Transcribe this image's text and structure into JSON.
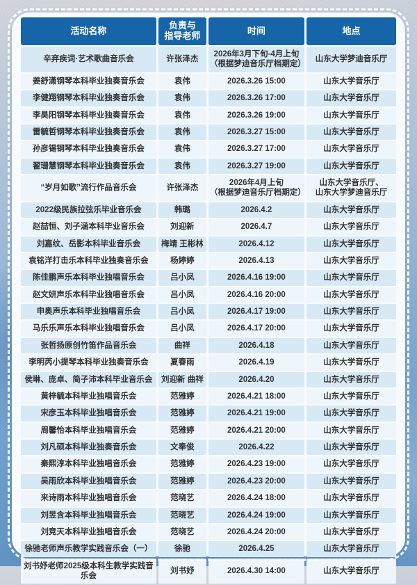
{
  "colors": {
    "header_bg": "#1565a8",
    "header_text": "#ffffff",
    "row_blue": "#d8e9f6",
    "row_white": "#eff6fb",
    "body_text": "#333333",
    "card_bg": "#f8fbfd",
    "page_bg_top": "#d2d5db",
    "page_bg_bottom": "#578dc0"
  },
  "table": {
    "columns": [
      {
        "label": "活动名称"
      },
      {
        "label": "负责与\n指导老师"
      },
      {
        "label": "时间"
      },
      {
        "label": "地点"
      }
    ],
    "rows": [
      {
        "name": "辛弃疾词·艺术歌曲音乐会",
        "teacher": "许张泽杰",
        "time": "2026年3月下旬-4月上旬\n（根据梦迪音乐厅档期定）",
        "location": "山东大学梦迪音乐厅"
      },
      {
        "name": "姜舒潇钢琴本科毕业独奏音乐会",
        "teacher": "袁伟",
        "time": "2026.3.26 15:00",
        "location": "山东大学音乐厅"
      },
      {
        "name": "李健翔钢琴本科毕业独奏音乐会",
        "teacher": "袁伟",
        "time": "2026.3.26 17:00",
        "location": "山东大学音乐厅"
      },
      {
        "name": "李昊阳钢琴本科毕业独奏音乐会",
        "teacher": "袁伟",
        "time": "2026.3.26 19:00",
        "location": "山东大学音乐厅"
      },
      {
        "name": "雷毓哲钢琴本科毕业独奏音乐会",
        "teacher": "袁伟",
        "time": "2026.3.27 15:00",
        "location": "山东大学音乐厅"
      },
      {
        "name": "孙彦锡钢琴本科毕业独奏音乐会",
        "teacher": "袁伟",
        "time": "2026.3.27 17:00",
        "location": "山东大学音乐厅"
      },
      {
        "name": "翟珊慧钢琴本科毕业独奏音乐会",
        "teacher": "袁伟",
        "time": "2026.3.27 19:00",
        "location": "山东大学音乐厅"
      },
      {
        "name": "“岁月如歌”流行作品音乐会",
        "teacher": "许张泽杰",
        "time": "2026年4月上旬\n（根据梦迪音乐厅档期定）",
        "location": "山东大学音乐厅、\n山东大学梦迪音乐厅"
      },
      {
        "name": "2022级民族拉弦乐毕业音乐会",
        "teacher": "韩璐",
        "time": "2026.4.2",
        "location": "山东大学音乐厅"
      },
      {
        "name": "赵喆恒、刘子涵本科毕业音乐会",
        "teacher": "刘迎新",
        "time": "2026.4.7",
        "location": "山东大学音乐厅"
      },
      {
        "name": "刘嘉纹、岳影本科毕业音乐会",
        "teacher": "梅靖 王彬林",
        "time": "2026.4.12",
        "location": "山东大学音乐厅"
      },
      {
        "name": "袁铭洋打击乐本科毕业独奏音乐会",
        "teacher": "杨婷婷",
        "time": "2026.4.13",
        "location": "山东大学音乐厅"
      },
      {
        "name": "陈佳鹏声乐本科毕业独唱音乐会",
        "teacher": "吕小凤",
        "time": "2026.4.16 19:00",
        "location": "山东大学音乐厅"
      },
      {
        "name": "赵文妍声乐本科毕业独唱音乐会",
        "teacher": "吕小凤",
        "time": "2026.4.16 20:00",
        "location": "山东大学音乐厅"
      },
      {
        "name": "申奥声乐本科毕业独唱音乐会",
        "teacher": "吕小凤",
        "time": "2026.4.17 19:00",
        "location": "山东大学音乐厅"
      },
      {
        "name": "马乐乐声乐本科毕业独唱音乐会",
        "teacher": "吕小凤",
        "time": "2026.4.17 20:00",
        "location": "山东大学音乐厅"
      },
      {
        "name": "张哲扬原创竹笛作品音乐会",
        "teacher": "曲祥",
        "time": "2026.4.18",
        "location": "山东大学音乐厅"
      },
      {
        "name": "李明芮小提琴本科毕业独奏音乐会",
        "teacher": "夏春雨",
        "time": "2026.4.19",
        "location": "山东大学音乐厅"
      },
      {
        "name": "侯琳、庞卓、简子沛本科毕业音乐会",
        "teacher": "刘迎新 曲祥",
        "time": "2026.4.20",
        "location": "山东大学音乐厅"
      },
      {
        "name": "黄梓毓本科毕业独唱音乐会",
        "teacher": "范雅婷",
        "time": "2026.4.21 18:00",
        "location": "山东大学音乐厅"
      },
      {
        "name": "宋彦玉本科毕业独唱音乐会",
        "teacher": "范雅婷",
        "time": "2026.4.21 19:00",
        "location": "山东大学音乐厅"
      },
      {
        "name": "周馨怡本科毕业独唱音乐会",
        "teacher": "范雅婷",
        "time": "2026.4.21 20:00",
        "location": "山东大学音乐厅"
      },
      {
        "name": "刘凡硕本科毕业独奏音乐会",
        "teacher": "文奉俊",
        "time": "2026.4.22",
        "location": "山东大学音乐厅"
      },
      {
        "name": "秦熙淳本科毕业独唱音乐会",
        "teacher": "范雅婷",
        "time": "2026.4.23 19:00",
        "location": "山东大学音乐厅"
      },
      {
        "name": "吴雨欣本科毕业独唱音乐会",
        "teacher": "范雅婷",
        "time": "2026.4.23 20:00",
        "location": "山东大学音乐厅"
      },
      {
        "name": "来诗雨本科毕业独唱音乐会",
        "teacher": "范晓艺",
        "time": "2026.4.24 18:00",
        "location": "山东大学音乐厅"
      },
      {
        "name": "刘昱含本科毕业独唱音乐会",
        "teacher": "范晓艺",
        "time": "2026.4.24 19:00",
        "location": "山东大学音乐厅"
      },
      {
        "name": "刘竞天本科毕业独唱音乐会",
        "teacher": "范晓艺",
        "time": "2026.4.24 20:00",
        "location": "山东大学音乐厅"
      },
      {
        "name": "徐驰老师声乐教学实践音乐会（一）",
        "teacher": "徐驰",
        "time": "2026.4.25",
        "location": "山东大学音乐厅"
      },
      {
        "name": "刘书妤老师2025级本科生教学实践音乐会",
        "teacher": "刘书妤",
        "time": "2026.4.30 14:00",
        "location": "山东大学音乐厅"
      }
    ]
  }
}
